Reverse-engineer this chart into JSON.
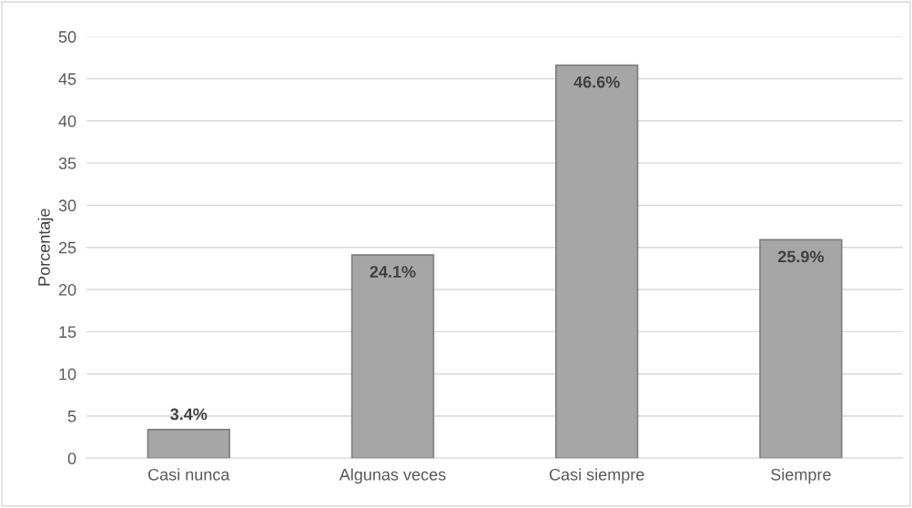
{
  "chart_data": {
    "type": "bar",
    "ylabel": "Porcentaje",
    "categories": [
      "Casi nunca",
      "Algunas veces",
      "Casi siempre",
      "Siempre"
    ],
    "values": [
      3.4,
      24.1,
      46.6,
      25.9
    ],
    "value_labels": [
      "3.4%",
      "24.1%",
      "46.6%",
      "25.9%"
    ],
    "color": "#a6a6a6",
    "ylim": [
      0,
      50
    ],
    "yticks": [
      0,
      5,
      10,
      15,
      20,
      25,
      30,
      35,
      40,
      45,
      50
    ],
    "grid": "y"
  }
}
